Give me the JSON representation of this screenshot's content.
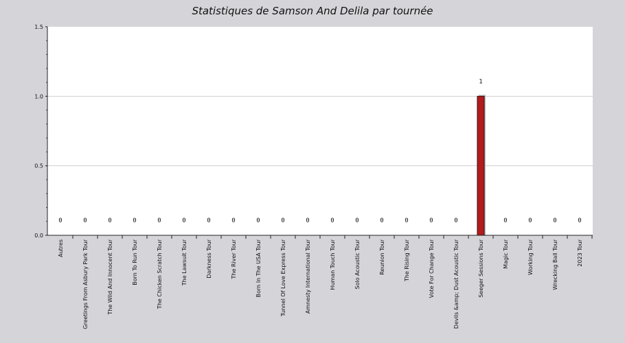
{
  "chart_data": {
    "type": "bar",
    "title": "Statistiques de Samson And Delila par tournée",
    "xlabel": "",
    "ylabel": "",
    "ylim": [
      0,
      1.5
    ],
    "yticks": [
      "0.0",
      "0.5",
      "1.0",
      "1.5"
    ],
    "grid": true,
    "categories": [
      "Autres",
      "Greetings From Asbury Park Tour",
      "The Wild And Innocent Tour",
      "Born To Run Tour",
      "The Chicken Scratch Tour",
      "The Lawsuit Tour",
      "Darkness Tour",
      "The River Tour",
      "Born In The USA Tour",
      "Tunnel Of Love Express Tour",
      "Amnesty International Tour",
      "Human Touch Tour",
      "Solo Acoustic Tour",
      "Reunion Tour",
      "The Rising Tour",
      "Vote For Change Tour",
      "Devils &amp; Dust Acoustic Tour",
      "Seeger Sessions Tour",
      "Magic Tour",
      "Working Tour",
      "Wrecking Ball Tour",
      "2023 Tour"
    ],
    "values": [
      0,
      0,
      0,
      0,
      0,
      0,
      0,
      0,
      0,
      0,
      0,
      0,
      0,
      0,
      0,
      0,
      0,
      1,
      0,
      0,
      0,
      0
    ],
    "bar_color": "#b01c1c",
    "bar_edge_color": "#3a0a0a"
  }
}
